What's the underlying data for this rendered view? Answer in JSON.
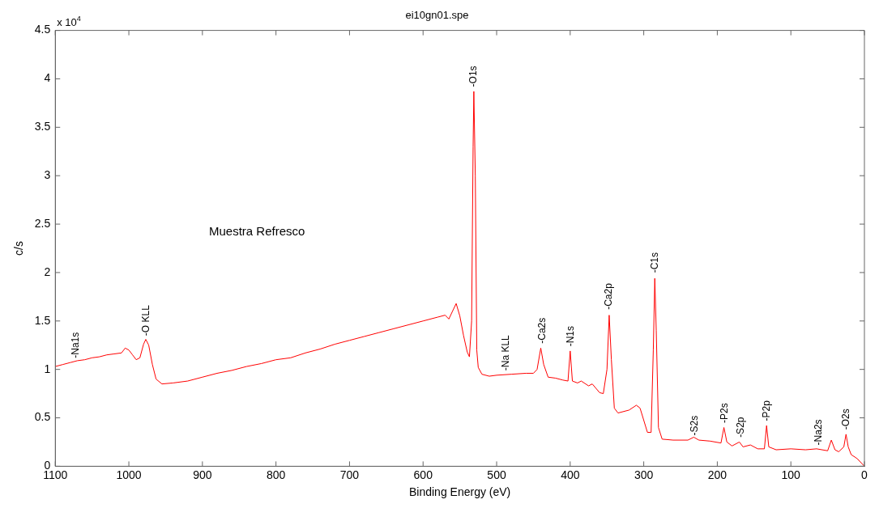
{
  "chart_data": {
    "type": "line",
    "title": "ei10gn01.spe",
    "xlabel": "Binding Energy (eV)",
    "ylabel": "c/s",
    "xlim": [
      1100,
      0
    ],
    "xticks": [
      1100,
      1000,
      900,
      800,
      700,
      600,
      500,
      400,
      300,
      200,
      100,
      0
    ],
    "ylim": [
      0,
      4.5
    ],
    "yticks": [
      0,
      0.5,
      1,
      1.5,
      2,
      2.5,
      3,
      3.5,
      4,
      4.5
    ],
    "grid": false,
    "legend": false,
    "marker": "none",
    "line_style": "solid",
    "series": [
      {
        "color": "#ff0000",
        "x": [
          1100,
          1090,
          1080,
          1070,
          1060,
          1050,
          1040,
          1030,
          1020,
          1010,
          1005,
          1000,
          995,
          990,
          985,
          980,
          977,
          973,
          968,
          963,
          955,
          940,
          920,
          900,
          880,
          860,
          840,
          820,
          800,
          780,
          760,
          740,
          720,
          700,
          680,
          660,
          640,
          620,
          600,
          580,
          570,
          565,
          555,
          550,
          545,
          540,
          537,
          534,
          532,
          531,
          529,
          527,
          525,
          520,
          510,
          500,
          480,
          460,
          450,
          445,
          440,
          436,
          430,
          420,
          410,
          403,
          400,
          397,
          390,
          385,
          375,
          370,
          360,
          355,
          350,
          347,
          344,
          340,
          335,
          320,
          310,
          305,
          295,
          290,
          287,
          285,
          283,
          280,
          275,
          260,
          240,
          232,
          225,
          210,
          195,
          191,
          187,
          180,
          170,
          165,
          155,
          145,
          136,
          133,
          130,
          120,
          100,
          80,
          65,
          50,
          45,
          40,
          35,
          28,
          25,
          22,
          18,
          10,
          0
        ],
        "values": [
          1.03,
          1.05,
          1.07,
          1.09,
          1.1,
          1.12,
          1.13,
          1.15,
          1.16,
          1.17,
          1.22,
          1.2,
          1.15,
          1.1,
          1.12,
          1.26,
          1.31,
          1.25,
          1.05,
          0.9,
          0.85,
          0.86,
          0.88,
          0.92,
          0.96,
          0.99,
          1.03,
          1.06,
          1.1,
          1.12,
          1.17,
          1.21,
          1.26,
          1.3,
          1.34,
          1.38,
          1.42,
          1.46,
          1.5,
          1.54,
          1.56,
          1.52,
          1.68,
          1.55,
          1.35,
          1.18,
          1.13,
          1.5,
          3.3,
          3.87,
          3.0,
          1.2,
          1.02,
          0.95,
          0.93,
          0.94,
          0.95,
          0.96,
          0.96,
          1.0,
          1.22,
          1.05,
          0.92,
          0.91,
          0.89,
          0.88,
          1.19,
          0.88,
          0.86,
          0.88,
          0.83,
          0.85,
          0.76,
          0.75,
          1.0,
          1.56,
          1.1,
          0.6,
          0.55,
          0.58,
          0.63,
          0.6,
          0.35,
          0.35,
          1.2,
          1.94,
          1.4,
          0.4,
          0.28,
          0.27,
          0.27,
          0.3,
          0.27,
          0.26,
          0.24,
          0.4,
          0.25,
          0.21,
          0.25,
          0.2,
          0.22,
          0.18,
          0.18,
          0.42,
          0.2,
          0.17,
          0.18,
          0.17,
          0.18,
          0.16,
          0.27,
          0.17,
          0.15,
          0.2,
          0.33,
          0.2,
          0.12,
          0.08,
          0
        ]
      }
    ],
    "annotations": [
      "x 10$^{4}$",
      "Muestra Refresco",
      {
        "text": "-Na1s",
        "x": 1072,
        "y": 1.1
      },
      {
        "text": "-O KLL",
        "x": 976,
        "y": 1.33
      },
      {
        "text": "-O1s",
        "x": 531,
        "y": 3.9
      },
      {
        "text": "-Na KLL",
        "x": 487,
        "y": 0.97
      },
      {
        "text": "-Ca2s",
        "x": 438,
        "y": 1.25
      },
      {
        "text": "-N1s",
        "x": 399,
        "y": 1.22
      },
      {
        "text": "-Ca2p",
        "x": 347,
        "y": 1.6
      },
      {
        "text": "-C1s",
        "x": 284,
        "y": 1.98
      },
      {
        "text": "-S2s",
        "x": 230,
        "y": 0.3
      },
      {
        "text": "-P2s",
        "x": 190,
        "y": 0.43
      },
      {
        "text": "-S2p",
        "x": 168,
        "y": 0.28
      },
      {
        "text": "-P2p",
        "x": 133,
        "y": 0.45
      },
      {
        "text": "-Na2s",
        "x": 62,
        "y": 0.2
      },
      {
        "text": "-O2s",
        "x": 25,
        "y": 0.36
      }
    ]
  }
}
